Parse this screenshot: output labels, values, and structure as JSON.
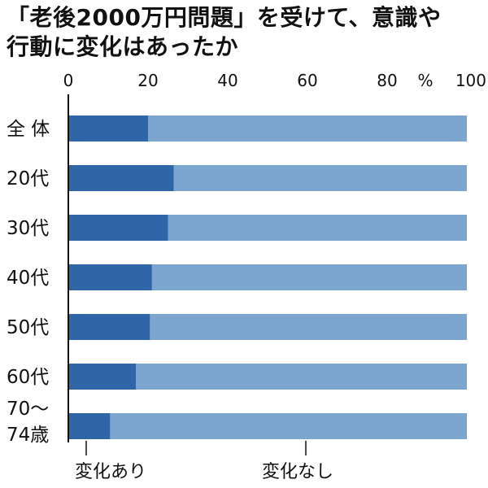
{
  "title_lines": [
    "「老後2000万円問題」を受けて、意識や",
    "行動に変化はあったか"
  ],
  "colors": {
    "changed": "#2e66a8",
    "unchanged": "#7ca5cf",
    "axis": "#111111"
  },
  "chart_data": {
    "type": "bar",
    "orientation": "horizontal",
    "stacked": true,
    "title": "「老後2000万円問題」を受けて、意識や行動に変化はあったか",
    "categories": [
      [
        "全 体"
      ],
      [
        "20代"
      ],
      [
        "30代"
      ],
      [
        "40代"
      ],
      [
        "50代"
      ],
      [
        "60代"
      ],
      [
        "70〜",
        "74歳"
      ]
    ],
    "series": [
      {
        "name": "変化あり",
        "values": [
          20,
          26.5,
          25,
          21,
          20.5,
          17,
          10.5
        ]
      },
      {
        "name": "変化なし",
        "values": [
          80,
          73.5,
          75,
          79,
          79.5,
          83,
          89.5
        ]
      }
    ],
    "xlim": [
      0,
      100
    ],
    "xticks": [
      0,
      20,
      40,
      60,
      80,
      100
    ],
    "unit": "%",
    "legend": [
      "変化あり",
      "変化なし"
    ],
    "legend_position": "bottom"
  }
}
